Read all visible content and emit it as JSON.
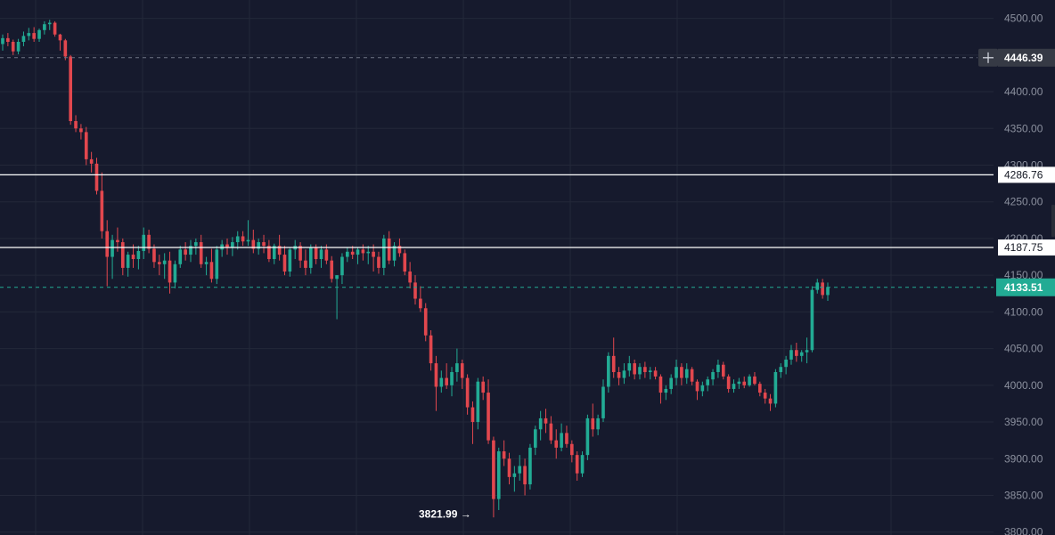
{
  "colors": {
    "background": "#161a2d",
    "grid": "#232839",
    "up": "#22ab94",
    "down": "#e2474e",
    "axis_text": "#8b909e",
    "hline": "#ffffff",
    "crosshair_bg": "#363a45",
    "current_bg": "#22ab94"
  },
  "chart_data": {
    "type": "candlestick",
    "ylim": [
      3796,
      4525
    ],
    "y_ticks": [
      "4500.00",
      "4450.00",
      "4400.00",
      "4350.00",
      "4300.00",
      "4250.00",
      "4200.00",
      "4150.00",
      "4100.00",
      "4050.00",
      "4000.00",
      "3950.00",
      "3900.00",
      "3850.00",
      "3800.00"
    ],
    "crosshair_price": "4446.39",
    "current_price": "4133.51",
    "horizontal_lines": [
      "4286.76",
      "4187.75"
    ],
    "low_label": "3821.99",
    "low_arrow": "→",
    "grid": true,
    "candles": [
      [
        4465,
        4478,
        4456,
        4473
      ],
      [
        4473,
        4480,
        4462,
        4468
      ],
      [
        4468,
        4471,
        4450,
        4455
      ],
      [
        4455,
        4472,
        4451,
        4468
      ],
      [
        4468,
        4482,
        4462,
        4476
      ],
      [
        4476,
        4487,
        4470,
        4480
      ],
      [
        4480,
        4488,
        4468,
        4472
      ],
      [
        4472,
        4486,
        4468,
        4484
      ],
      [
        4484,
        4496,
        4478,
        4492
      ],
      [
        4492,
        4498,
        4484,
        4494
      ],
      [
        4494,
        4496,
        4475,
        4478
      ],
      [
        4478,
        4479,
        4456,
        4470
      ],
      [
        4470,
        4472,
        4443,
        4448
      ],
      [
        4448,
        4450,
        4355,
        4360
      ],
      [
        4360,
        4368,
        4345,
        4350
      ],
      [
        4350,
        4356,
        4335,
        4345
      ],
      [
        4345,
        4352,
        4300,
        4308
      ],
      [
        4308,
        4318,
        4290,
        4302
      ],
      [
        4302,
        4310,
        4260,
        4265
      ],
      [
        4265,
        4290,
        4200,
        4210
      ],
      [
        4210,
        4225,
        4135,
        4175
      ],
      [
        4175,
        4205,
        4145,
        4198
      ],
      [
        4198,
        4215,
        4182,
        4195
      ],
      [
        4195,
        4200,
        4150,
        4160
      ],
      [
        4160,
        4182,
        4148,
        4178
      ],
      [
        4178,
        4192,
        4160,
        4172
      ],
      [
        4172,
        4190,
        4158,
        4183
      ],
      [
        4183,
        4215,
        4172,
        4205
      ],
      [
        4205,
        4212,
        4180,
        4186
      ],
      [
        4186,
        4192,
        4160,
        4168
      ],
      [
        4168,
        4178,
        4150,
        4165
      ],
      [
        4165,
        4180,
        4145,
        4170
      ],
      [
        4170,
        4182,
        4125,
        4140
      ],
      [
        4140,
        4170,
        4132,
        4165
      ],
      [
        4165,
        4190,
        4160,
        4185
      ],
      [
        4185,
        4195,
        4170,
        4178
      ],
      [
        4178,
        4198,
        4168,
        4190
      ],
      [
        4190,
        4200,
        4178,
        4195
      ],
      [
        4195,
        4205,
        4160,
        4165
      ],
      [
        4165,
        4175,
        4150,
        4168
      ],
      [
        4168,
        4186,
        4140,
        4145
      ],
      [
        4145,
        4190,
        4138,
        4185
      ],
      [
        4185,
        4198,
        4175,
        4192
      ],
      [
        4192,
        4200,
        4178,
        4188
      ],
      [
        4188,
        4202,
        4176,
        4195
      ],
      [
        4195,
        4210,
        4185,
        4203
      ],
      [
        4203,
        4210,
        4190,
        4196
      ],
      [
        4196,
        4225,
        4190,
        4198
      ],
      [
        4198,
        4212,
        4180,
        4186
      ],
      [
        4186,
        4200,
        4178,
        4195
      ],
      [
        4195,
        4205,
        4180,
        4190
      ],
      [
        4190,
        4198,
        4168,
        4172
      ],
      [
        4172,
        4193,
        4165,
        4190
      ],
      [
        4190,
        4205,
        4170,
        4178
      ],
      [
        4178,
        4190,
        4150,
        4155
      ],
      [
        4155,
        4188,
        4148,
        4185
      ],
      [
        4185,
        4198,
        4172,
        4190
      ],
      [
        4190,
        4195,
        4160,
        4170
      ],
      [
        4170,
        4185,
        4150,
        4160
      ],
      [
        4160,
        4192,
        4152,
        4188
      ],
      [
        4188,
        4192,
        4165,
        4172
      ],
      [
        4172,
        4190,
        4160,
        4185
      ],
      [
        4185,
        4192,
        4165,
        4170
      ],
      [
        4170,
        4176,
        4140,
        4145
      ],
      [
        4145,
        4150,
        4090,
        4150
      ],
      [
        4150,
        4180,
        4138,
        4175
      ],
      [
        4175,
        4188,
        4168,
        4182
      ],
      [
        4182,
        4190,
        4172,
        4178
      ],
      [
        4178,
        4188,
        4165,
        4185
      ],
      [
        4185,
        4192,
        4170,
        4180
      ],
      [
        4180,
        4190,
        4165,
        4182
      ],
      [
        4182,
        4192,
        4155,
        4175
      ],
      [
        4175,
        4182,
        4152,
        4160
      ],
      [
        4160,
        4205,
        4150,
        4200
      ],
      [
        4200,
        4210,
        4165,
        4170
      ],
      [
        4170,
        4195,
        4162,
        4190
      ],
      [
        4190,
        4200,
        4175,
        4180
      ],
      [
        4180,
        4185,
        4150,
        4155
      ],
      [
        4155,
        4168,
        4132,
        4140
      ],
      [
        4140,
        4150,
        4110,
        4118
      ],
      [
        4118,
        4135,
        4100,
        4105
      ],
      [
        4105,
        4112,
        4060,
        4068
      ],
      [
        4068,
        4075,
        4020,
        4030
      ],
      [
        4030,
        4040,
        3965,
        3998
      ],
      [
        3998,
        4020,
        3990,
        4010
      ],
      [
        4010,
        4030,
        3995,
        4000
      ],
      [
        4000,
        4025,
        3985,
        4018
      ],
      [
        4018,
        4050,
        4005,
        4030
      ],
      [
        4030,
        4035,
        3995,
        4010
      ],
      [
        4010,
        4015,
        3960,
        3970
      ],
      [
        3970,
        3978,
        3920,
        3950
      ],
      [
        3950,
        4010,
        3940,
        4005
      ],
      [
        4005,
        4012,
        3980,
        3990
      ],
      [
        3990,
        4008,
        3920,
        3925
      ],
      [
        3925,
        3930,
        3820,
        3845
      ],
      [
        3845,
        3915,
        3830,
        3910
      ],
      [
        3910,
        3925,
        3890,
        3900
      ],
      [
        3900,
        3908,
        3865,
        3875
      ],
      [
        3875,
        3890,
        3855,
        3880
      ],
      [
        3880,
        3905,
        3870,
        3890
      ],
      [
        3890,
        3900,
        3850,
        3865
      ],
      [
        3865,
        3920,
        3858,
        3915
      ],
      [
        3915,
        3945,
        3905,
        3940
      ],
      [
        3940,
        3965,
        3925,
        3955
      ],
      [
        3955,
        3968,
        3935,
        3948
      ],
      [
        3948,
        3958,
        3920,
        3925
      ],
      [
        3925,
        3940,
        3900,
        3915
      ],
      [
        3915,
        3948,
        3910,
        3935
      ],
      [
        3935,
        3945,
        3915,
        3920
      ],
      [
        3920,
        3925,
        3895,
        3905
      ],
      [
        3905,
        3910,
        3870,
        3880
      ],
      [
        3880,
        3910,
        3875,
        3905
      ],
      [
        3905,
        3960,
        3898,
        3955
      ],
      [
        3955,
        3975,
        3930,
        3940
      ],
      [
        3940,
        3960,
        3932,
        3955
      ],
      [
        3955,
        4008,
        3950,
        3998
      ],
      [
        3998,
        4045,
        3990,
        4040
      ],
      [
        4040,
        4065,
        4010,
        4018
      ],
      [
        4018,
        4025,
        4000,
        4010
      ],
      [
        4010,
        4030,
        4002,
        4020
      ],
      [
        4020,
        4040,
        4012,
        4030
      ],
      [
        4030,
        4035,
        4008,
        4015
      ],
      [
        4015,
        4030,
        4008,
        4025
      ],
      [
        4025,
        4032,
        4010,
        4018
      ],
      [
        4018,
        4025,
        4008,
        4020
      ],
      [
        4020,
        4025,
        4008,
        4012
      ],
      [
        4012,
        4015,
        3975,
        3990
      ],
      [
        3990,
        4000,
        3980,
        3995
      ],
      [
        3995,
        4015,
        3988,
        4010
      ],
      [
        4010,
        4035,
        4000,
        4025
      ],
      [
        4025,
        4030,
        4000,
        4010
      ],
      [
        4010,
        4030,
        4002,
        4022
      ],
      [
        4022,
        4025,
        4000,
        4005
      ],
      [
        4005,
        4008,
        3980,
        3992
      ],
      [
        3992,
        4005,
        3985,
        4000
      ],
      [
        4000,
        4012,
        3992,
        4008
      ],
      [
        4008,
        4022,
        4000,
        4018
      ],
      [
        4018,
        4035,
        4010,
        4028
      ],
      [
        4028,
        4032,
        4008,
        4012
      ],
      [
        4012,
        4015,
        3990,
        3995
      ],
      [
        3995,
        4008,
        3990,
        4002
      ],
      [
        4002,
        4010,
        3995,
        4005
      ],
      [
        4005,
        4012,
        3996,
        4000
      ],
      [
        4000,
        4015,
        3998,
        4012
      ],
      [
        4012,
        4018,
        4000,
        4002
      ],
      [
        4002,
        4005,
        3985,
        3990
      ],
      [
        3990,
        3995,
        3975,
        3982
      ],
      [
        3982,
        3988,
        3965,
        3975
      ],
      [
        3975,
        4022,
        3970,
        4018
      ],
      [
        4018,
        4030,
        4010,
        4025
      ],
      [
        4025,
        4040,
        4015,
        4035
      ],
      [
        4035,
        4055,
        4028,
        4048
      ],
      [
        4048,
        4058,
        4032,
        4040
      ],
      [
        4040,
        4048,
        4032,
        4045
      ],
      [
        4045,
        4065,
        4030,
        4048
      ],
      [
        4048,
        4135,
        4045,
        4130
      ],
      [
        4130,
        4145,
        4125,
        4140
      ],
      [
        4140,
        4145,
        4118,
        4123
      ],
      [
        4123,
        4140,
        4115,
        4134
      ]
    ]
  }
}
